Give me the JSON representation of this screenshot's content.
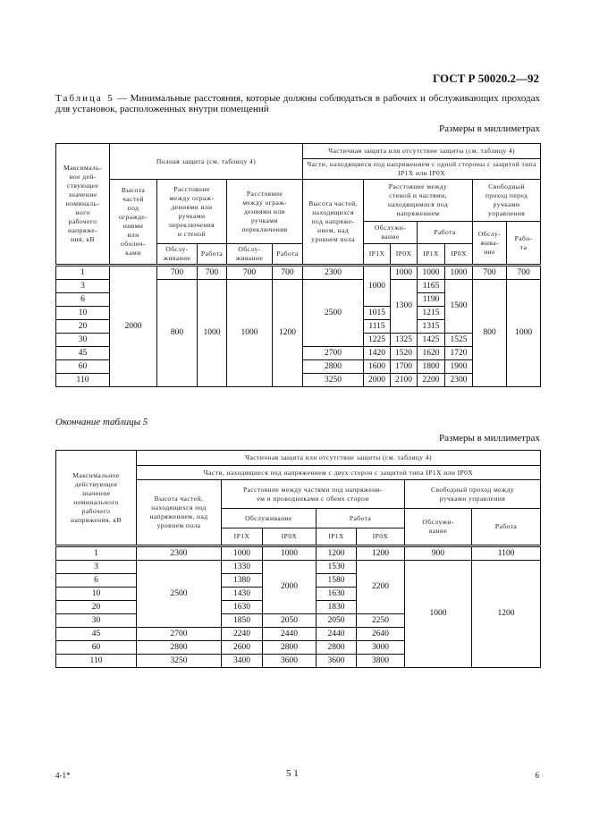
{
  "header": {
    "doc_code": "ГОСТ Р 50020.2—92"
  },
  "caption": {
    "lead": "Таблица 5",
    "text": " — Минимальные расстояния, которые должны соблюдаться в рабочих и обслуживающих проходах для установок, расположенных внутри помещений"
  },
  "units_label": "Размеры в миллиметрах",
  "continuation_label": "Окончание таблицы 5",
  "table1": {
    "header_rows": [
      [
        {
          "t": "Максималь-\nное дей-\nствующее\nзначение\nноминаль-\nного\nрабочего\nнапряже-\nния, кВ",
          "rs": 5
        },
        {
          "t": "Полная защита (см. таблицу 4)",
          "cs": 5,
          "rs": 2
        },
        {
          "t": "Частичная защита или отсутствие защиты (см. таблицу 4)",
          "cs": 7
        }
      ],
      [
        {
          "t": "Части, находящиеся под напряжением с одной стороны с защитой типа IP1X или IP0X",
          "cs": 7
        }
      ],
      [
        {
          "t": "Высота\nчастей\nпод\nограждe-\nниями\nили\nоболоч-\nками",
          "rs": 3
        },
        {
          "t": "Расстояние\nмежду ограж-\nдениями или\nручками\nпереключения\nи стеной",
          "cs": 2,
          "rs": 2
        },
        {
          "t": "Расстояние\nмежду ограж-\nдениями или\nручками\nпереключения",
          "cs": 2,
          "rs": 2
        },
        {
          "t": "Высота частей,\nнаходящихся\nпод напряже-\nнием, над\nуровнем пола",
          "rs": 3
        },
        {
          "t": "Расстояние между\nстеной и частями,\nнаходящимися под\nнапряжением",
          "cs": 4
        },
        {
          "t": "Свободный\nпроход перед\nручками\nуправления",
          "cs": 2
        }
      ],
      [
        {
          "t": "Обслужи-\nвание",
          "cs": 2
        },
        {
          "t": "Работа",
          "cs": 2
        },
        {
          "t": "Обслу-\nжива-\nние",
          "rs": 2
        },
        {
          "t": "Рабо-\nта",
          "rs": 2
        }
      ],
      [
        {
          "t": "Обслу-\nживание"
        },
        {
          "t": "Работа"
        },
        {
          "t": "Обслу-\nживание"
        },
        {
          "t": "Работа"
        },
        {
          "t": "IP1X"
        },
        {
          "t": "IP0X"
        },
        {
          "t": "IP1X"
        },
        {
          "t": "IP0X"
        }
      ]
    ],
    "rows": [
      [
        {
          "t": "1"
        },
        {
          "t": "2000",
          "rs": 9
        },
        {
          "t": "700"
        },
        {
          "t": "700"
        },
        {
          "t": "700"
        },
        {
          "t": "700"
        },
        {
          "t": "2300"
        },
        {
          "t": "1000",
          "rs": 3
        },
        {
          "t": "1000"
        },
        {
          "t": "1000"
        },
        {
          "t": "1000"
        },
        {
          "t": "700"
        },
        {
          "t": "700"
        }
      ],
      [
        {
          "t": "3"
        },
        {
          "t": "800",
          "rs": 8
        },
        {
          "t": "1000",
          "rs": 8
        },
        {
          "t": "1000",
          "rs": 8
        },
        {
          "t": "1200",
          "rs": 8
        },
        {
          "t": "2500",
          "rs": 5
        },
        {
          "t": "1300",
          "rs": 4
        },
        {
          "t": "1165"
        },
        {
          "t": "1500",
          "rs": 4
        },
        {
          "t": "800",
          "rs": 8
        },
        {
          "t": "1000",
          "rs": 8
        }
      ],
      [
        {
          "t": "6"
        },
        {
          "t": "1190"
        }
      ],
      [
        {
          "t": "10"
        },
        {
          "t": "1015"
        },
        {
          "t": "1215"
        }
      ],
      [
        {
          "t": "20"
        },
        {
          "t": "1115"
        },
        {
          "t": "1315"
        }
      ],
      [
        {
          "t": "30"
        },
        {
          "t": "1225"
        },
        {
          "t": "1325"
        },
        {
          "t": "1425"
        },
        {
          "t": "1525"
        }
      ],
      [
        {
          "t": "45"
        },
        {
          "t": "2700"
        },
        {
          "t": "1420"
        },
        {
          "t": "1520"
        },
        {
          "t": "1620"
        },
        {
          "t": "1720"
        }
      ],
      [
        {
          "t": "60"
        },
        {
          "t": "2800"
        },
        {
          "t": "1600"
        },
        {
          "t": "1700"
        },
        {
          "t": "1800"
        },
        {
          "t": "1900"
        }
      ],
      [
        {
          "t": "110"
        },
        {
          "t": "3250"
        },
        {
          "t": "2000"
        },
        {
          "t": "2100"
        },
        {
          "t": "2200"
        },
        {
          "t": "2300"
        }
      ]
    ]
  },
  "table2": {
    "header_rows": [
      [
        {
          "t": "Максимальное\nдействующее\nзначение\nноминального\nрабочего\nнапряжения, кВ",
          "rs": 5
        },
        {
          "t": "Частичная защита или отсутствие защиты (см. таблицу 4)",
          "cs": 7
        }
      ],
      [
        {
          "t": "Части, находящиеся под напряжением с двух сторон с защитой типа IP1X или IP0X",
          "cs": 7
        }
      ],
      [
        {
          "t": "Высота частей,\nнаходящихся под\nнапряжением, над\nуровнем пола",
          "rs": 3
        },
        {
          "t": "Расстояние между частями под напряжени-\nем и проводниками с обеих сторон",
          "cs": 4
        },
        {
          "t": "Свободный проход между\nручками управления",
          "cs": 2
        }
      ],
      [
        {
          "t": "Обслуживание",
          "cs": 2
        },
        {
          "t": "Работа",
          "cs": 2
        },
        {
          "t": "Обслужи-\nвание",
          "rs": 2
        },
        {
          "t": "Работа",
          "rs": 2
        }
      ],
      [
        {
          "t": "IP1X"
        },
        {
          "t": "IP0X"
        },
        {
          "t": "IP1X"
        },
        {
          "t": "IP0X"
        }
      ]
    ],
    "rows": [
      [
        {
          "t": "1"
        },
        {
          "t": "2300"
        },
        {
          "t": "1000"
        },
        {
          "t": "1000"
        },
        {
          "t": "1200"
        },
        {
          "t": "1200"
        },
        {
          "t": "900"
        },
        {
          "t": "1100"
        }
      ],
      [
        {
          "t": "3"
        },
        {
          "t": "2500",
          "rs": 5
        },
        {
          "t": "1330"
        },
        {
          "t": "2000",
          "rs": 4
        },
        {
          "t": "1530"
        },
        {
          "t": "2200",
          "rs": 4
        },
        {
          "t": "1000",
          "rs": 8
        },
        {
          "t": "1200",
          "rs": 8
        }
      ],
      [
        {
          "t": "6"
        },
        {
          "t": "1380"
        },
        {
          "t": "1580"
        }
      ],
      [
        {
          "t": "10"
        },
        {
          "t": "1430"
        },
        {
          "t": "1630"
        }
      ],
      [
        {
          "t": "20"
        },
        {
          "t": "1630"
        },
        {
          "t": "1830"
        }
      ],
      [
        {
          "t": "30"
        },
        {
          "t": "1850"
        },
        {
          "t": "2050"
        },
        {
          "t": "2050"
        },
        {
          "t": "2250"
        }
      ],
      [
        {
          "t": "45"
        },
        {
          "t": "2700"
        },
        {
          "t": "2240"
        },
        {
          "t": "2440"
        },
        {
          "t": "2440"
        },
        {
          "t": "2640"
        }
      ],
      [
        {
          "t": "60"
        },
        {
          "t": "2800"
        },
        {
          "t": "2600"
        },
        {
          "t": "2800"
        },
        {
          "t": "2800"
        },
        {
          "t": "3000"
        }
      ],
      [
        {
          "t": "110"
        },
        {
          "t": "3250"
        },
        {
          "t": "3400"
        },
        {
          "t": "3600"
        },
        {
          "t": "3600"
        },
        {
          "t": "3800"
        }
      ]
    ]
  },
  "footer": {
    "left": "4-1*",
    "center": "5 1",
    "right": "6"
  }
}
